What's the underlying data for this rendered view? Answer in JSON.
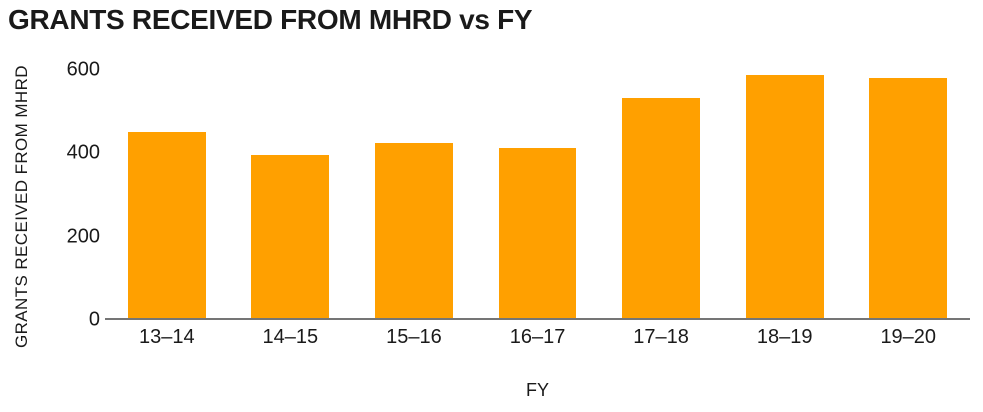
{
  "chart_data": {
    "type": "bar",
    "title": "GRANTS RECEIVED FROM MHRD vs FY",
    "xlabel": "FY",
    "ylabel": "GRANTS RECEIVED FROM MHRD",
    "categories": [
      "13–14",
      "14–15",
      "15–16",
      "16–17",
      "17–18",
      "18–19",
      "19–20"
    ],
    "values": [
      446,
      390,
      421,
      408,
      528,
      583,
      577
    ],
    "yticks": [
      0,
      200,
      400,
      600
    ],
    "ylim": [
      0,
      600
    ],
    "grid": false,
    "legend": false,
    "bar_color": "#FFA000",
    "axis_color": "#757575",
    "text_color": "#1A1A1A",
    "background_color": "#FFFFFF"
  }
}
